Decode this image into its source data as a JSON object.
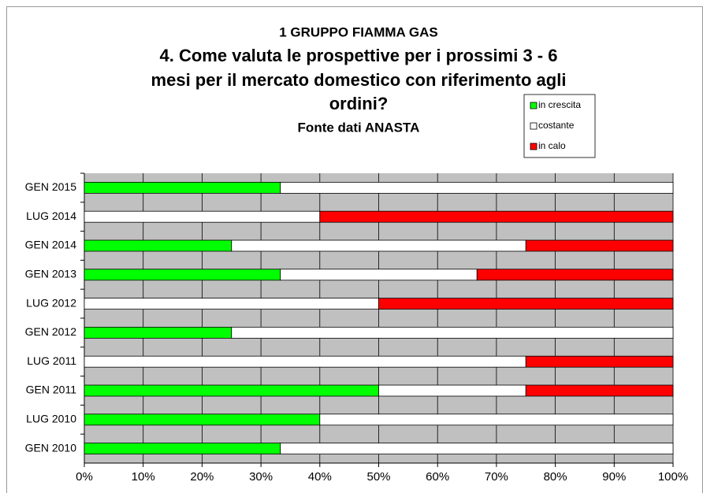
{
  "chart_data": {
    "type": "stacked_barh",
    "supertitle": "1 GRUPPO  FIAMMA GAS",
    "title": [
      "4. Come valuta le prospettive per i prossimi   3 - 6",
      "mesi per il mercato domestico con riferimento agli",
      "ordini?"
    ],
    "subtitle": "Fonte dati ANASTA",
    "categories": [
      "GEN 2015",
      "LUG 2014",
      "GEN 2014",
      "GEN 2013",
      "LUG 2012",
      "GEN 2012",
      "LUG 2011",
      "GEN 2011",
      "LUG 2010",
      "GEN 2010"
    ],
    "series": [
      {
        "name": "in crescita",
        "color": "#00ff00",
        "values": [
          33.3,
          0,
          25,
          33.3,
          0,
          25,
          0,
          50,
          40,
          33.3
        ]
      },
      {
        "name": "costante",
        "color": "#ffffff",
        "values": [
          66.7,
          40,
          50,
          33.4,
          50,
          75,
          75,
          25,
          60,
          66.7
        ]
      },
      {
        "name": "in calo",
        "color": "#ff0000",
        "values": [
          0,
          60,
          25,
          33.3,
          50,
          0,
          25,
          25,
          0,
          0
        ]
      }
    ],
    "xlim": [
      0,
      100
    ],
    "xticks": [
      {
        "value": 0,
        "label": "0%"
      },
      {
        "value": 10,
        "label": "10%"
      },
      {
        "value": 20,
        "label": "20%"
      },
      {
        "value": 30,
        "label": "30%"
      },
      {
        "value": 40,
        "label": "40%"
      },
      {
        "value": 50,
        "label": "50%"
      },
      {
        "value": 60,
        "label": "60%"
      },
      {
        "value": 70,
        "label": "70%"
      },
      {
        "value": 80,
        "label": "80%"
      },
      {
        "value": 90,
        "label": "90%"
      },
      {
        "value": 100,
        "label": "100%"
      }
    ],
    "grid": true,
    "legend": "upper right"
  }
}
